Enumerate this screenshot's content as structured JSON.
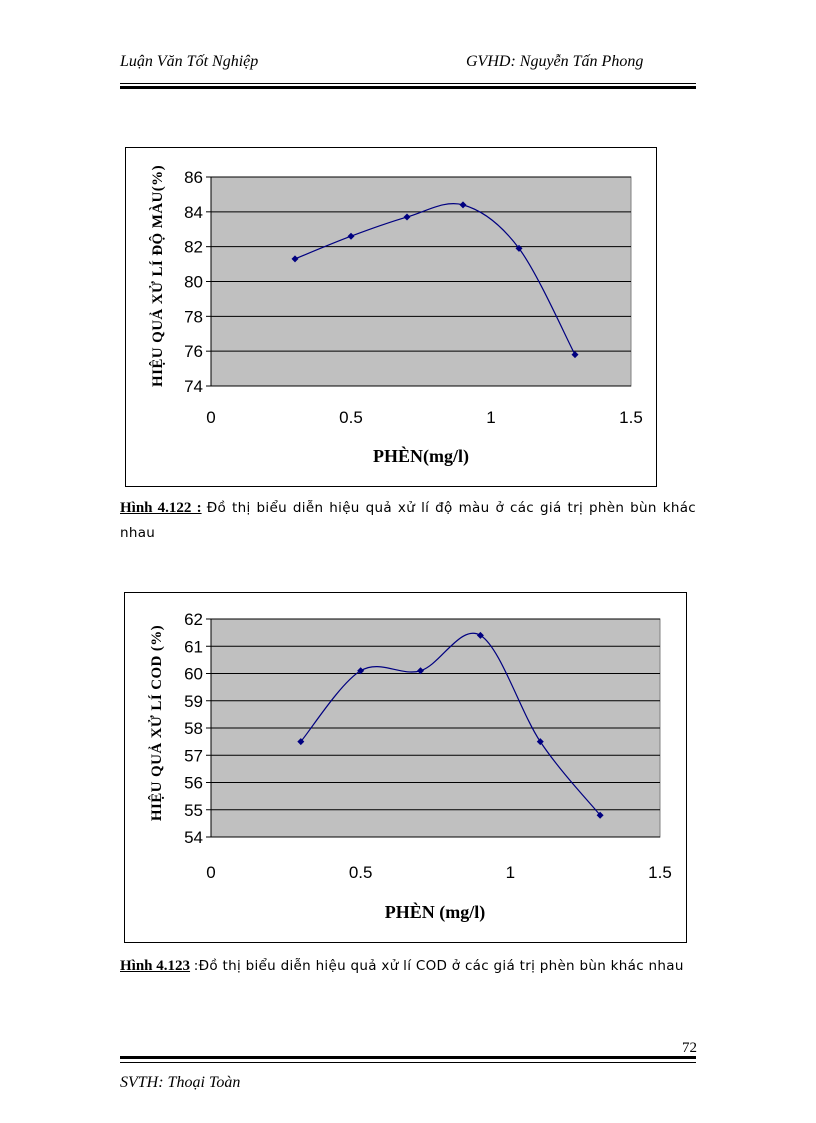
{
  "header": {
    "left": "Luận Văn Tốt Nghiệp",
    "right": "GVHD: Nguyễn Tấn Phong"
  },
  "figure1": {
    "label": "Hình 4.122 :",
    "caption": "Đồ thị biểu diễn hiệu quả xử lí độ màu ở các giá trị phèn bùn khác nhau"
  },
  "figure2": {
    "label": "Hình 4.123",
    "caption": ":Đồ thị biểu diễn hiệu quả xử lí COD ở các giá trị phèn bùn khác nhau"
  },
  "page_number": "72",
  "footer": "SVTH: Thoại Toàn",
  "chart_data": [
    {
      "type": "line",
      "title": "",
      "xlabel": "PHÈN(mg/l)",
      "ylabel": "HIỆU QUẢ XỬ LÍ ĐỘ MÀU(%)",
      "xlim": [
        0,
        1.5
      ],
      "ylim": [
        74,
        86
      ],
      "xticks": [
        0,
        0.5,
        1,
        1.5
      ],
      "xtick_labels": [
        "0",
        "0.5",
        "1",
        "1.5"
      ],
      "yticks": [
        74,
        76,
        78,
        80,
        82,
        84,
        86
      ],
      "ytick_labels": [
        "74",
        "76",
        "78",
        "80",
        "82",
        "84",
        "86"
      ],
      "grid": true,
      "smooth": true,
      "series": [
        {
          "name": "",
          "x": [
            0.3,
            0.5,
            0.7,
            0.9,
            1.1,
            1.3
          ],
          "y": [
            81.3,
            82.6,
            83.7,
            84.4,
            81.9,
            75.8
          ]
        }
      ]
    },
    {
      "type": "line",
      "title": "",
      "xlabel": "PHÈN (mg/l)",
      "ylabel": "HIỆU QUẢ XỬ LÍ COD (%)",
      "xlim": [
        0,
        1.5
      ],
      "ylim": [
        54,
        62
      ],
      "xticks": [
        0,
        0.5,
        1,
        1.5
      ],
      "xtick_labels": [
        "0",
        "0.5",
        "1",
        "1.5"
      ],
      "yticks": [
        54,
        55,
        56,
        57,
        58,
        59,
        60,
        61,
        62
      ],
      "ytick_labels": [
        "54",
        "55",
        "56",
        "57",
        "58",
        "59",
        "60",
        "61",
        "62"
      ],
      "grid": true,
      "smooth": true,
      "series": [
        {
          "name": "",
          "x": [
            0.3,
            0.5,
            0.7,
            0.9,
            1.1,
            1.3
          ],
          "y": [
            57.5,
            60.1,
            60.1,
            61.4,
            57.5,
            54.8
          ]
        }
      ]
    }
  ],
  "colors": {
    "plot_area": "#c0c0c0",
    "gridline": "#000000",
    "series": "#000080"
  }
}
